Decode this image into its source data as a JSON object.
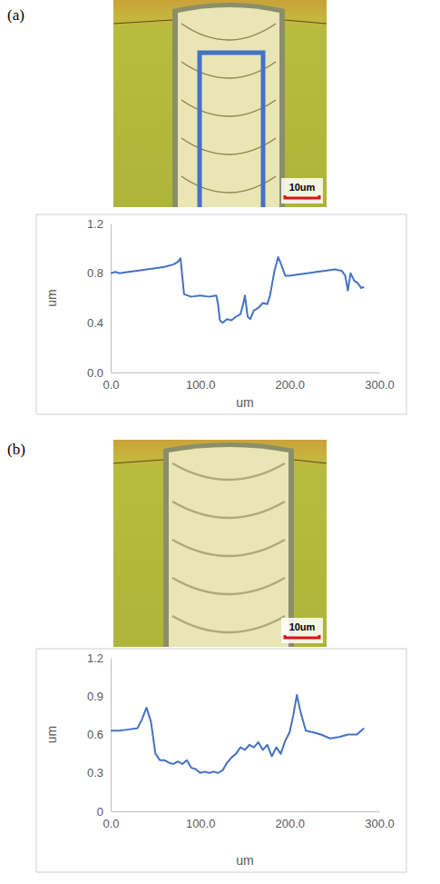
{
  "chart_data": [
    {
      "type": "line",
      "title": "(a)",
      "annotations": [
        "10um"
      ],
      "x_label": "um",
      "y_label": "um",
      "xlim": [
        0,
        300
      ],
      "xticks": [
        {
          "value": 0,
          "label": "0.0"
        },
        {
          "value": 100,
          "label": "100.0"
        },
        {
          "value": 200,
          "label": "200.0"
        },
        {
          "value": 300,
          "label": "300.0"
        }
      ],
      "ylim": [
        0,
        1.2
      ],
      "yticks": [
        {
          "value": 0,
          "label": "0.0"
        },
        0.4,
        0.8,
        1.2
      ],
      "color": "#4472c4",
      "x": [
        0,
        5,
        10,
        20,
        30,
        40,
        50,
        60,
        70,
        75,
        78,
        82,
        90,
        100,
        110,
        118,
        120,
        122,
        125,
        130,
        135,
        140,
        145,
        148,
        150,
        153,
        156,
        160,
        165,
        170,
        175,
        178,
        180,
        183,
        187,
        190,
        195,
        200,
        210,
        220,
        230,
        240,
        250,
        258,
        262,
        265,
        268,
        272,
        276,
        280,
        283
      ],
      "values": [
        0.8,
        0.81,
        0.8,
        0.81,
        0.82,
        0.83,
        0.84,
        0.85,
        0.87,
        0.89,
        0.92,
        0.63,
        0.61,
        0.62,
        0.61,
        0.62,
        0.55,
        0.42,
        0.4,
        0.43,
        0.42,
        0.45,
        0.47,
        0.55,
        0.62,
        0.45,
        0.43,
        0.5,
        0.52,
        0.56,
        0.55,
        0.62,
        0.7,
        0.82,
        0.93,
        0.88,
        0.78,
        0.78,
        0.79,
        0.8,
        0.81,
        0.82,
        0.83,
        0.82,
        0.78,
        0.66,
        0.8,
        0.74,
        0.72,
        0.68,
        0.69
      ]
    },
    {
      "type": "line",
      "title": "(b)",
      "annotations": [
        "10um"
      ],
      "x_label": "um",
      "y_label": "um",
      "xlim": [
        0,
        300
      ],
      "xticks": [
        {
          "value": 0,
          "label": "0.0"
        },
        {
          "value": 100,
          "label": "100.0"
        },
        {
          "value": 200,
          "label": "200.0"
        },
        {
          "value": 300,
          "label": "300.0"
        }
      ],
      "ylim": [
        0,
        1.2
      ],
      "yticks": [
        0,
        0.3,
        0.6,
        0.9,
        1.2
      ],
      "color": "#4472c4",
      "x": [
        0,
        10,
        20,
        30,
        35,
        40,
        45,
        50,
        55,
        60,
        65,
        70,
        75,
        80,
        85,
        90,
        95,
        100,
        105,
        110,
        115,
        120,
        125,
        130,
        135,
        140,
        145,
        150,
        155,
        160,
        165,
        170,
        175,
        180,
        185,
        190,
        195,
        200,
        204,
        208,
        212,
        218,
        225,
        235,
        245,
        255,
        265,
        275,
        283
      ],
      "values": [
        0.63,
        0.63,
        0.64,
        0.65,
        0.72,
        0.81,
        0.7,
        0.45,
        0.4,
        0.4,
        0.38,
        0.37,
        0.39,
        0.37,
        0.4,
        0.34,
        0.33,
        0.3,
        0.31,
        0.3,
        0.31,
        0.3,
        0.32,
        0.38,
        0.42,
        0.45,
        0.5,
        0.48,
        0.52,
        0.5,
        0.54,
        0.48,
        0.52,
        0.43,
        0.5,
        0.45,
        0.55,
        0.62,
        0.75,
        0.91,
        0.78,
        0.63,
        0.62,
        0.6,
        0.57,
        0.58,
        0.6,
        0.6,
        0.65
      ]
    }
  ]
}
